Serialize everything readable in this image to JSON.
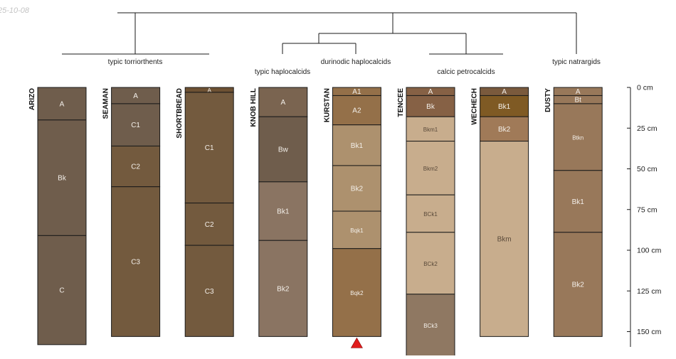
{
  "date_stamp": "25-10-08",
  "depth_unit": "cm",
  "depth_max_cm": 165,
  "depth_ticks_cm": [
    0,
    25,
    50,
    75,
    100,
    125,
    150
  ],
  "depth_tick_labels": [
    "0 cm",
    "25 cm",
    "50 cm",
    "75 cm",
    "100 cm",
    "125 cm",
    "150 cm"
  ],
  "clusters": [
    {
      "label": "typic torriorthents",
      "members": [
        "ARIZO",
        "SEAMAN",
        "SHORTBREAD"
      ]
    },
    {
      "label": "typic haplocalcids",
      "members": [
        "KNOB HILL"
      ]
    },
    {
      "label": "durinodic haplocalcids",
      "members": [
        "KURSTAN"
      ]
    },
    {
      "label": "calcic petrocalcids",
      "members": [
        "TENCEE",
        "WECHECH"
      ]
    },
    {
      "label": "typic natrargids",
      "members": [
        "DUSTY"
      ]
    }
  ],
  "profiles": [
    {
      "name": "ARIZO",
      "horizons": [
        {
          "name": "A",
          "top": 0,
          "bottom": 20,
          "color": "#6f5d4c"
        },
        {
          "name": "Bk",
          "top": 20,
          "bottom": 91,
          "color": "#6f5d4c"
        },
        {
          "name": "C",
          "top": 91,
          "bottom": 158,
          "color": "#6f5d4c"
        }
      ]
    },
    {
      "name": "SEAMAN",
      "horizons": [
        {
          "name": "A",
          "top": 0,
          "bottom": 10,
          "color": "#6f5d4c"
        },
        {
          "name": "C1",
          "top": 10,
          "bottom": 36,
          "color": "#6f5d4c"
        },
        {
          "name": "C2",
          "top": 36,
          "bottom": 61,
          "color": "#735a3e"
        },
        {
          "name": "C3",
          "top": 61,
          "bottom": 153,
          "color": "#735a3e"
        }
      ]
    },
    {
      "name": "SHORTBREAD",
      "horizons": [
        {
          "name": "A",
          "top": 0,
          "bottom": 3,
          "color": "#6e5133"
        },
        {
          "name": "C1",
          "top": 3,
          "bottom": 71,
          "color": "#735a3e"
        },
        {
          "name": "C2",
          "top": 71,
          "bottom": 97,
          "color": "#735a3e"
        },
        {
          "name": "C3",
          "top": 97,
          "bottom": 153,
          "color": "#735a3e"
        }
      ]
    },
    {
      "name": "KNOB HILL",
      "horizons": [
        {
          "name": "A",
          "top": 0,
          "bottom": 18,
          "color": "#7a6450"
        },
        {
          "name": "Bw",
          "top": 18,
          "bottom": 58,
          "color": "#6f5d4c"
        },
        {
          "name": "Bk1",
          "top": 58,
          "bottom": 94,
          "color": "#8a7462"
        },
        {
          "name": "Bk2",
          "top": 94,
          "bottom": 153,
          "color": "#8a7462"
        }
      ]
    },
    {
      "name": "KURSTAN",
      "horizons": [
        {
          "name": "A1",
          "top": 0,
          "bottom": 5,
          "color": "#947049"
        },
        {
          "name": "A2",
          "top": 5,
          "bottom": 23,
          "color": "#947049"
        },
        {
          "name": "Bk1",
          "top": 23,
          "bottom": 48,
          "color": "#ad916e"
        },
        {
          "name": "Bk2",
          "top": 48,
          "bottom": 76,
          "color": "#ad916e"
        },
        {
          "name": "Bqk1",
          "top": 76,
          "bottom": 99,
          "color": "#ad916e"
        },
        {
          "name": "Bqk2",
          "top": 99,
          "bottom": 153,
          "color": "#947049"
        }
      ]
    },
    {
      "name": "TENCEE",
      "horizons": [
        {
          "name": "A",
          "top": 0,
          "bottom": 5,
          "color": "#866145"
        },
        {
          "name": "Bk",
          "top": 5,
          "bottom": 18,
          "color": "#866145"
        },
        {
          "name": "Bkm1",
          "top": 18,
          "bottom": 33,
          "color": "#c8ad8d"
        },
        {
          "name": "Bkm2",
          "top": 33,
          "bottom": 66,
          "color": "#c8ad8d"
        },
        {
          "name": "BCk1",
          "top": 66,
          "bottom": 89,
          "color": "#c8ad8d"
        },
        {
          "name": "BCk2",
          "top": 89,
          "bottom": 127,
          "color": "#c8ad8d"
        },
        {
          "name": "BCk3",
          "top": 127,
          "bottom": 165,
          "color": "#8f7862"
        }
      ]
    },
    {
      "name": "WECHECH",
      "horizons": [
        {
          "name": "A",
          "top": 0,
          "bottom": 5,
          "color": "#7a5a3d"
        },
        {
          "name": "Bk1",
          "top": 5,
          "bottom": 18,
          "color": "#7f5a24"
        },
        {
          "name": "Bk2",
          "top": 18,
          "bottom": 33,
          "color": "#a07a58"
        },
        {
          "name": "Bkm",
          "top": 33,
          "bottom": 153,
          "color": "#c8ad8d"
        }
      ]
    },
    {
      "name": "DUSTY",
      "horizons": [
        {
          "name": "A",
          "top": 0,
          "bottom": 5,
          "color": "#98785a"
        },
        {
          "name": "Bt",
          "top": 5,
          "bottom": 10,
          "color": "#98785a"
        },
        {
          "name": "Btkn",
          "top": 10,
          "bottom": 51,
          "color": "#98785a"
        },
        {
          "name": "Bk1",
          "top": 51,
          "bottom": 89,
          "color": "#98785a"
        },
        {
          "name": "Bk2",
          "top": 89,
          "bottom": 153,
          "color": "#98785a"
        }
      ]
    }
  ],
  "marker": {
    "profile": "KURSTAN",
    "depth_cm": 153,
    "shape": "triangle-up",
    "color": "#e11c1c"
  }
}
